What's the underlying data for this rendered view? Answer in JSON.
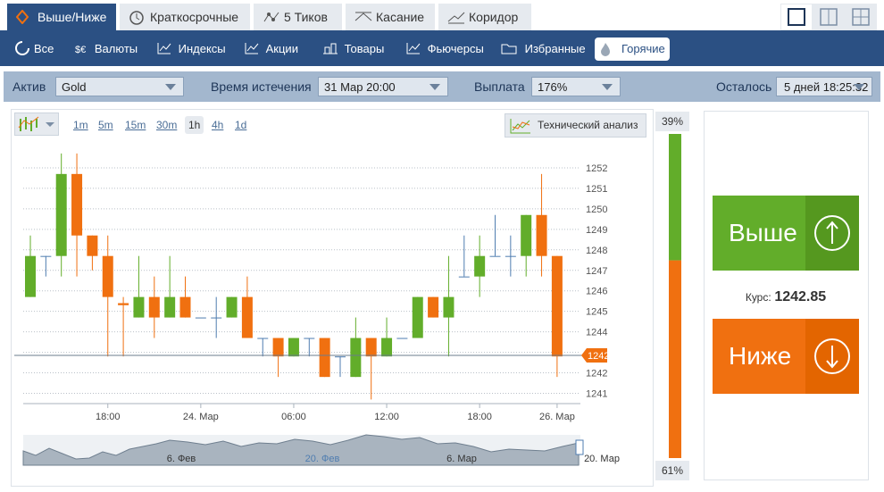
{
  "tabs": [
    "Выше/Ниже",
    "Краткосрочные",
    "5 Тиков",
    "Касание",
    "Коридор"
  ],
  "markets": [
    "Все",
    "Валюты",
    "Индексы",
    "Акции",
    "Товары",
    "Фьючерсы",
    "Избранные",
    "Горячие"
  ],
  "filters": {
    "asset_label": "Актив",
    "asset": "Gold",
    "expiry_label": "Время истечения",
    "expiry": "31 Мар 20:00",
    "payout_label": "Выплата",
    "payout": "176%",
    "remaining_label": "Осталось",
    "remaining": "5 дней 18:25:32"
  },
  "timeframes": [
    "1m",
    "5m",
    "15m",
    "30m",
    "1h",
    "4h",
    "1d"
  ],
  "tech_analysis": "Технический анализ",
  "chart_data": {
    "type": "candlestick",
    "categories": [
      null,
      null,
      null,
      null,
      null,
      "18:00",
      null,
      null,
      null,
      null,
      null,
      "24. Мар",
      null,
      null,
      null,
      null,
      null,
      "06:00",
      null,
      null,
      null,
      null,
      null,
      "12:00",
      null,
      null,
      null,
      null,
      null,
      "18:00",
      null,
      null,
      null,
      null,
      "26. Мар"
    ],
    "open": [
      1245.7,
      1247.7,
      1247.7,
      1251.7,
      1248.7,
      1247.7,
      1245.4,
      1244.7,
      1245.7,
      1244.7,
      1245.7,
      1244.7,
      1244.7,
      1244.7,
      1245.7,
      1243.7,
      1243.7,
      1242.8,
      1243.7,
      1243.7,
      1242.8,
      1241.8,
      1243.7,
      1242.8,
      1243.7,
      1243.7,
      1245.7,
      1244.7,
      1246.7,
      1246.7,
      1247.7,
      1247.7,
      1247.7,
      1249.7,
      1247.7
    ],
    "high": [
      1248.7,
      1247.7,
      1252.7,
      1252.7,
      1248.7,
      1248.7,
      1245.7,
      1247.7,
      1246.7,
      1247.7,
      1246.7,
      1244.7,
      1245.7,
      1245.7,
      1246.7,
      1243.7,
      1243.7,
      1243.7,
      1243.7,
      1243.7,
      1242.8,
      1244.7,
      1243.7,
      1244.7,
      1243.7,
      1245.7,
      1245.7,
      1247.7,
      1248.7,
      1248.7,
      1249.7,
      1248.7,
      1249.7,
      1251.7,
      1247.7
    ],
    "low": [
      1245.7,
      1246.7,
      1246.7,
      1246.7,
      1247.0,
      1242.8,
      1242.8,
      1244.7,
      1243.7,
      1244.7,
      1244.7,
      1244.7,
      1243.7,
      1244.7,
      1243.7,
      1242.8,
      1241.8,
      1242.8,
      1242.8,
      1241.8,
      1241.8,
      1241.8,
      1240.7,
      1242.8,
      1243.7,
      1243.7,
      1244.7,
      1242.8,
      1246.7,
      1245.7,
      1247.7,
      1246.7,
      1246.7,
      1246.7,
      1241.8
    ],
    "close": [
      1247.7,
      1247.7,
      1251.7,
      1248.7,
      1247.7,
      1245.7,
      1245.3,
      1245.7,
      1244.7,
      1245.7,
      1244.7,
      1244.7,
      1244.7,
      1245.7,
      1243.7,
      1243.7,
      1242.8,
      1243.7,
      1243.7,
      1241.8,
      1242.8,
      1243.7,
      1242.8,
      1243.7,
      1243.7,
      1245.7,
      1244.7,
      1245.7,
      1246.7,
      1247.7,
      1247.7,
      1247.7,
      1249.7,
      1247.7,
      1242.8
    ],
    "up_color": "#62ad2a",
    "down_color": "#f07010",
    "flat_color": "#4f7db0",
    "ylim": [
      1240.5,
      1253
    ],
    "yticks": [
      1241,
      1242,
      1243,
      1244,
      1245,
      1246,
      1247,
      1248,
      1249,
      1250,
      1251,
      1252
    ],
    "grid": true
  },
  "navigator": {
    "labels": [
      "6. Фев",
      "20. Фев",
      "6. Мар",
      "20. Мар"
    ]
  },
  "sentiment": {
    "values": [
      39,
      61
    ],
    "value_labels": [
      "39%",
      "61%"
    ],
    "colors": [
      "#62ad2a",
      "#f07010"
    ]
  },
  "trade": {
    "up": "Выше",
    "down": "Ниже",
    "rate_label": "Курс:",
    "rate": 1242.85
  }
}
